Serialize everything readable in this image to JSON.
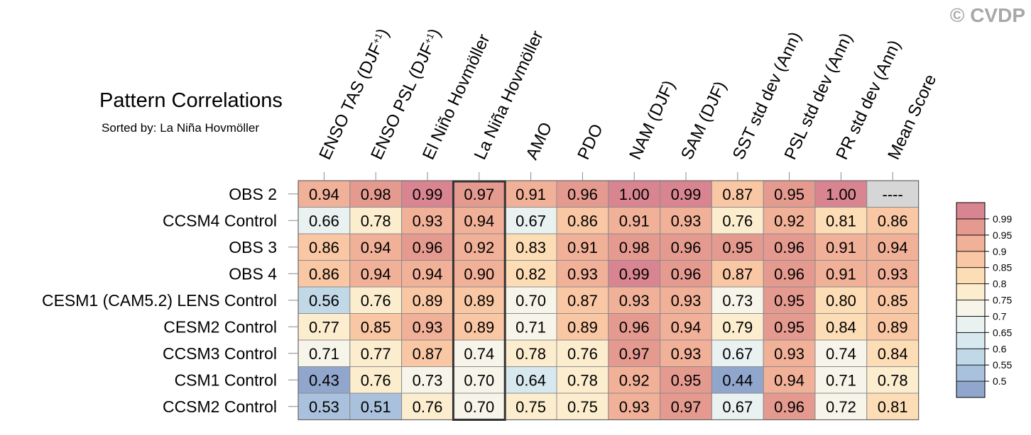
{
  "watermark": "© CVDP",
  "chart_data": {
    "type": "heatmap",
    "title": "Pattern Correlations",
    "subtitle": "Sorted by: La Niña Hovmöller",
    "columns": [
      {
        "main": "ENSO TAS (DJF",
        "sup": "+1",
        "tail": ")"
      },
      {
        "main": "ENSO PSL (DJF",
        "sup": "+1",
        "tail": ")"
      },
      {
        "main": "El Niño Hovmöller",
        "sup": "",
        "tail": ""
      },
      {
        "main": "La Niña Hovmöller",
        "sup": "",
        "tail": ""
      },
      {
        "main": "AMO",
        "sup": "",
        "tail": ""
      },
      {
        "main": "PDO",
        "sup": "",
        "tail": ""
      },
      {
        "main": "NAM (DJF)",
        "sup": "",
        "tail": ""
      },
      {
        "main": "SAM (DJF)",
        "sup": "",
        "tail": ""
      },
      {
        "main": "SST std dev (Ann)",
        "sup": "",
        "tail": ""
      },
      {
        "main": "PSL std dev (Ann)",
        "sup": "",
        "tail": ""
      },
      {
        "main": "PR std dev (Ann)",
        "sup": "",
        "tail": ""
      },
      {
        "main": "Mean Score",
        "sup": "",
        "tail": ""
      }
    ],
    "highlight_column": 3,
    "rows": [
      "OBS 2",
      "CCSM4 Control",
      "OBS 3",
      "OBS 4",
      "CESM1 (CAM5.2) LENS Control",
      "CESM2 Control",
      "CCSM3 Control",
      "CSM1 Control",
      "CCSM2 Control"
    ],
    "values": [
      [
        0.94,
        0.98,
        0.99,
        0.97,
        0.91,
        0.96,
        1.0,
        0.99,
        0.87,
        0.95,
        1.0,
        null
      ],
      [
        0.66,
        0.78,
        0.93,
        0.94,
        0.67,
        0.86,
        0.91,
        0.93,
        0.76,
        0.92,
        0.81,
        0.86
      ],
      [
        0.86,
        0.94,
        0.96,
        0.92,
        0.83,
        0.91,
        0.98,
        0.96,
        0.95,
        0.96,
        0.91,
        0.94
      ],
      [
        0.86,
        0.94,
        0.94,
        0.9,
        0.82,
        0.93,
        0.99,
        0.96,
        0.87,
        0.96,
        0.91,
        0.93
      ],
      [
        0.56,
        0.76,
        0.89,
        0.89,
        0.7,
        0.87,
        0.93,
        0.93,
        0.73,
        0.95,
        0.8,
        0.85
      ],
      [
        0.77,
        0.85,
        0.93,
        0.89,
        0.71,
        0.89,
        0.96,
        0.94,
        0.79,
        0.95,
        0.84,
        0.89
      ],
      [
        0.71,
        0.77,
        0.87,
        0.74,
        0.78,
        0.76,
        0.97,
        0.93,
        0.67,
        0.93,
        0.74,
        0.84
      ],
      [
        0.43,
        0.76,
        0.73,
        0.7,
        0.64,
        0.78,
        0.92,
        0.95,
        0.44,
        0.94,
        0.71,
        0.78
      ],
      [
        0.53,
        0.51,
        0.76,
        0.7,
        0.75,
        0.75,
        0.93,
        0.97,
        0.67,
        0.96,
        0.72,
        0.81
      ]
    ],
    "missing_label": "----",
    "missing_color": "#d6d6d6",
    "colorbar": {
      "thresholds": [
        0.5,
        0.55,
        0.6,
        0.65,
        0.7,
        0.75,
        0.8,
        0.85,
        0.9,
        0.95,
        0.99
      ],
      "labels": [
        "0.5",
        "0.55",
        "0.6",
        "0.65",
        "0.7",
        "0.75",
        "0.8",
        "0.85",
        "0.9",
        "0.95",
        "0.99"
      ],
      "colors": [
        "#91a6cc",
        "#a9c1dc",
        "#c1d8e7",
        "#d7e8ef",
        "#e9f1f1",
        "#f7f5e9",
        "#fcedcf",
        "#fdddb6",
        "#f9c7a4",
        "#f1b098",
        "#e59a90",
        "#d98591"
      ]
    }
  }
}
